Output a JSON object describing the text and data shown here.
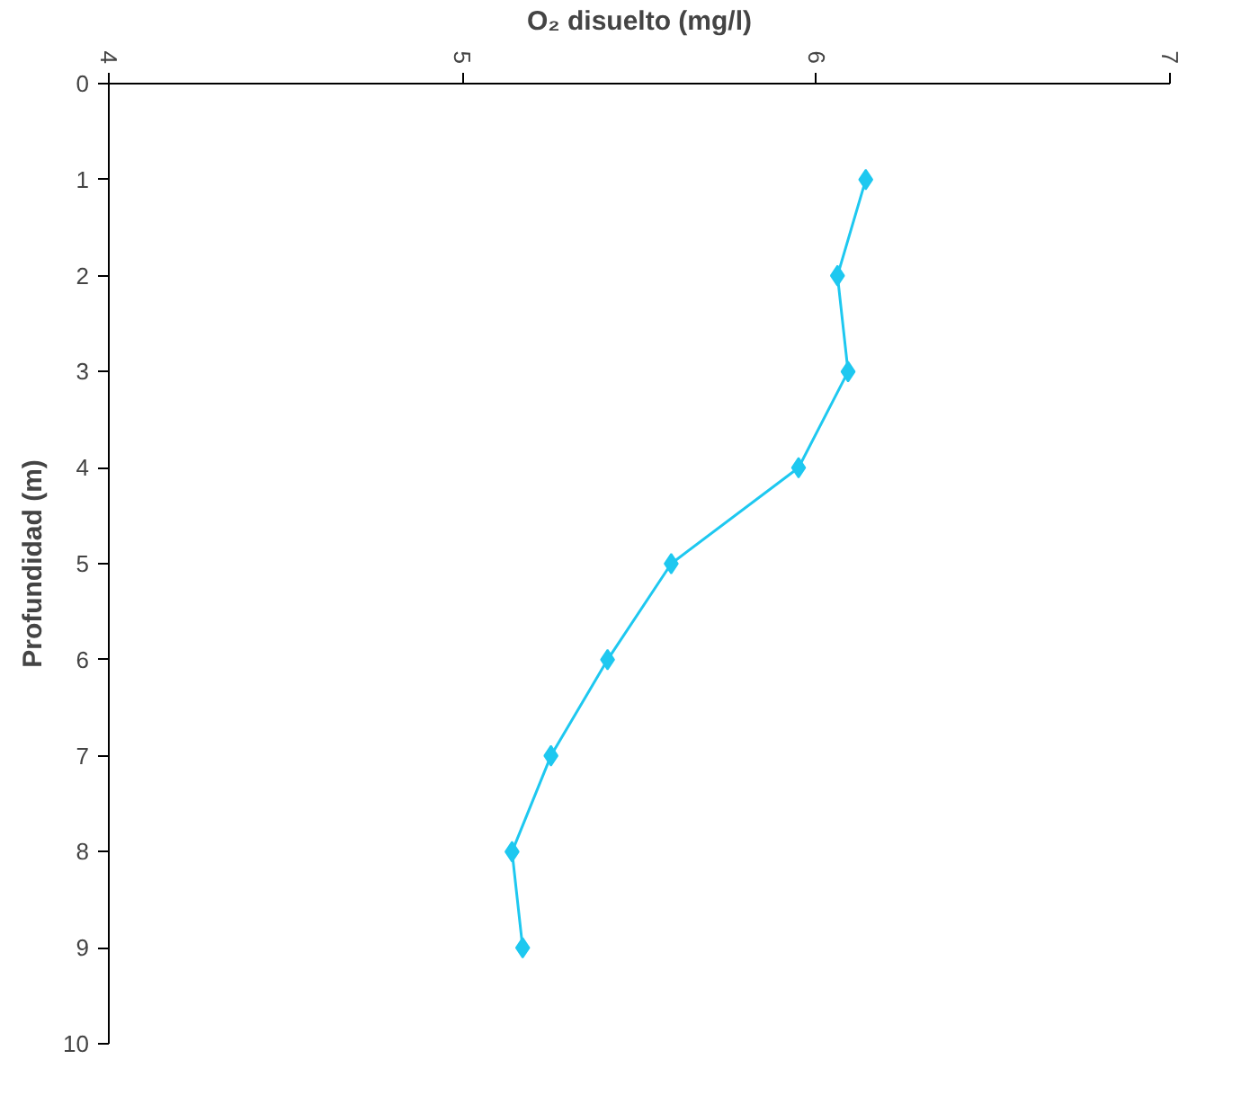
{
  "chart_data": {
    "type": "line",
    "xlabel": "O₂ disuelto (mg/l)",
    "ylabel": "Profundidad (m)",
    "x": [
      6.14,
      6.06,
      6.09,
      5.95,
      5.59,
      5.41,
      5.25,
      5.14,
      5.17
    ],
    "series": [
      {
        "color": "#1ec8f0",
        "values": [
          1,
          2,
          3,
          4,
          5,
          6,
          7,
          8,
          9
        ]
      }
    ],
    "xlim": [
      4,
      7
    ],
    "xticks": [
      4,
      5,
      6,
      7
    ],
    "ylim": [
      10,
      0
    ],
    "yticks": [
      0,
      1,
      2,
      3,
      4,
      5,
      6,
      7,
      8,
      9,
      10
    ],
    "grid": false,
    "marker": "diamond",
    "line_style": "solid"
  }
}
